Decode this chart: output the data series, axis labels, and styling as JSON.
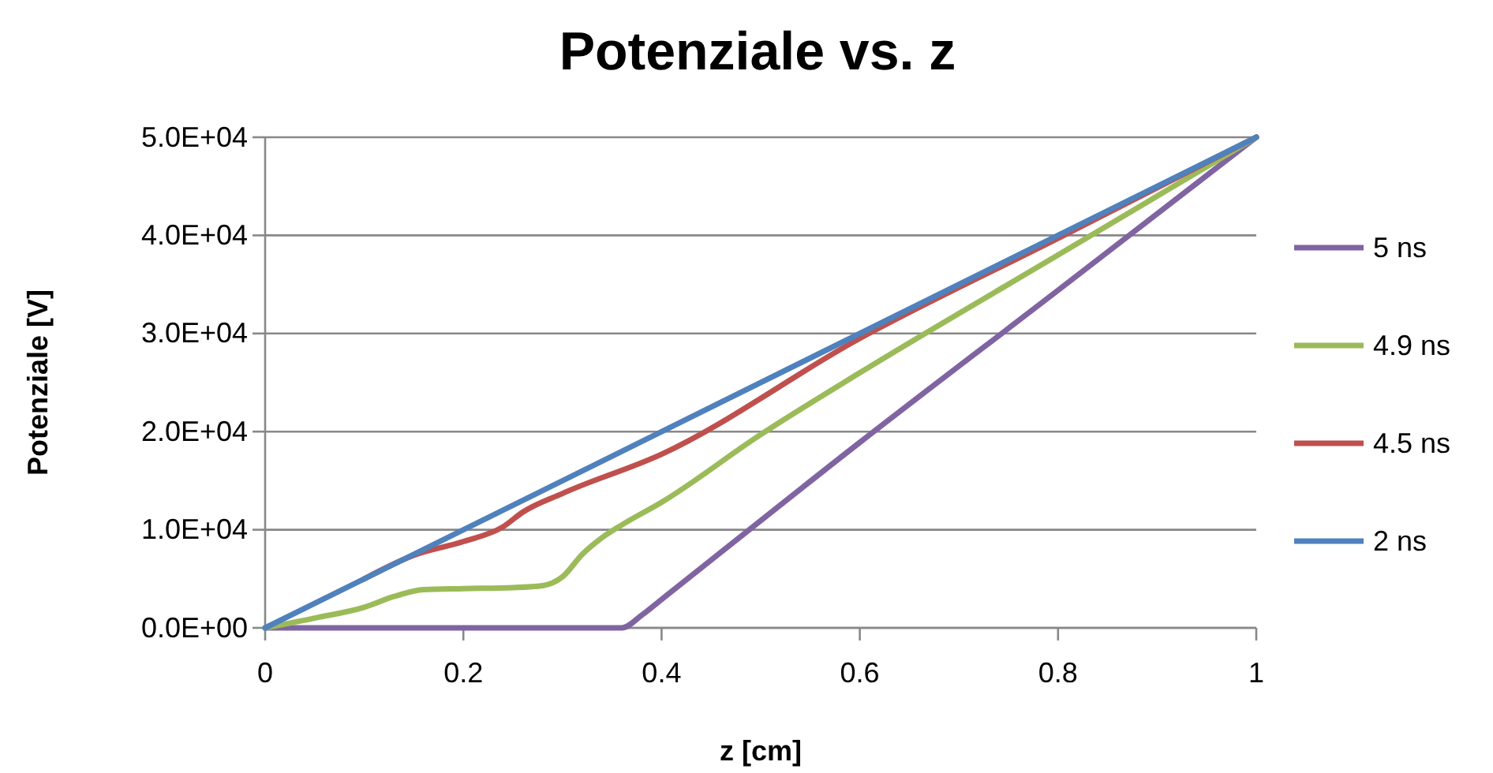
{
  "chart_data": {
    "type": "line",
    "title": "Potenziale vs. z",
    "xlabel": "z [cm]",
    "ylabel": "Potenziale [V]",
    "xlim": [
      0,
      1
    ],
    "xticks": [
      0,
      0.2,
      0.4,
      0.6,
      0.8,
      1
    ],
    "ylim": [
      0,
      50000
    ],
    "yticks": [
      {
        "value": 0,
        "label": "0.0E+00"
      },
      {
        "value": 10000,
        "label": "1.0E+04"
      },
      {
        "value": 20000,
        "label": "2.0E+04"
      },
      {
        "value": 30000,
        "label": "3.0E+04"
      },
      {
        "value": 40000,
        "label": "4.0E+04"
      },
      {
        "value": 50000,
        "label": "5.0E+04"
      }
    ],
    "grid": "y",
    "legend": "right",
    "marker": "none",
    "line_style": "solid",
    "series": [
      {
        "name": "5 ns",
        "color": "#8064a2",
        "x": [
          0,
          0.1,
          0.2,
          0.3,
          0.36,
          0.38,
          0.4,
          0.6,
          0.8,
          1
        ],
        "values": [
          0,
          0,
          0,
          0,
          0,
          1300,
          2900,
          18900,
          34400,
          50000
        ]
      },
      {
        "name": "4.9 ns",
        "color": "#9bbb59",
        "x": [
          0,
          0.05,
          0.1,
          0.13,
          0.16,
          0.2,
          0.25,
          0.28,
          0.3,
          0.32,
          0.34,
          0.36,
          0.4,
          0.5,
          0.6,
          0.8,
          1
        ],
        "values": [
          0,
          1000,
          2100,
          3200,
          3900,
          4000,
          4100,
          4300,
          5200,
          7500,
          9200,
          10500,
          12800,
          19700,
          26000,
          38000,
          50000
        ]
      },
      {
        "name": "4.5 ns",
        "color": "#c0504d",
        "x": [
          0.1,
          0.15,
          0.2,
          0.24,
          0.26,
          0.3,
          0.4,
          0.6,
          0.8,
          1
        ],
        "values": [
          5000,
          7400,
          8800,
          10300,
          11800,
          13700,
          17700,
          29500,
          39700,
          50000
        ]
      },
      {
        "name": "2 ns",
        "color": "#4f81bd",
        "x": [
          0,
          1
        ],
        "values": [
          0,
          50000
        ]
      }
    ]
  }
}
